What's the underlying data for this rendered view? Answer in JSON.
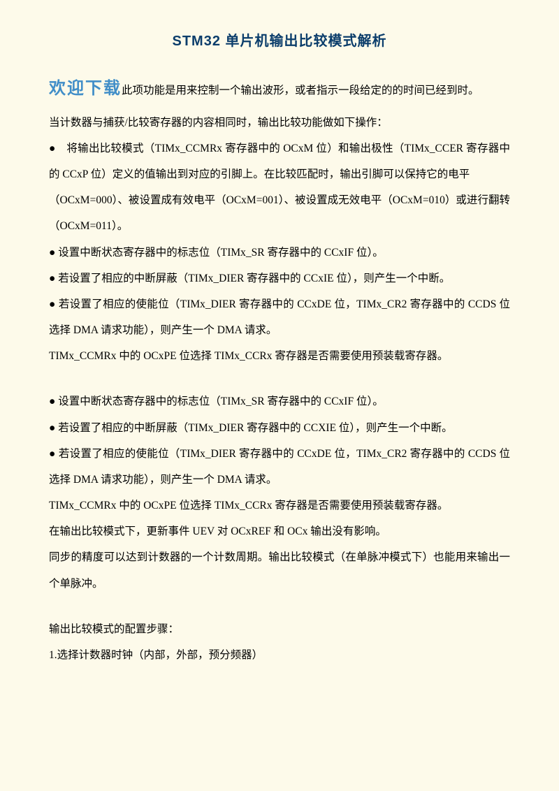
{
  "title": "STM32 单片机输出比较模式解析",
  "watermark": "欢迎下载",
  "p00": "此项功能是用来控制一个输出波形，或者指示一段给定的的时间已经到时。",
  "p01": "当计数器与捕获/比较寄存器的内容相同时，输出比较功能做如下操作：",
  "p02": "●　将输出比较模式（TIMx_CCMRx 寄存器中的 OCxM 位）和输出极性（TIMx_CCER 寄存器中的 CCxP 位）定义的值输出到对应的引脚上。在比较匹配时，输出引脚可以保持它的电平",
  "p03": "（OCxM=000）、被设置成有效电平（OCxM=001）、被设置成无效电平（OCxM=010）或进行翻转（OCxM=011）。",
  "p04": "● 设置中断状态寄存器中的标志位（TIMx_SR 寄存器中的 CCxIF 位）。",
  "p05": "● 若设置了相应的中断屏蔽（TIMx_DIER 寄存器中的 CCxIE 位），则产生一个中断。",
  "p06": "● 若设置了相应的使能位（TIMx_DIER 寄存器中的 CCxDE 位，TIMx_CR2 寄存器中的 CCDS 位选择 DMA 请求功能），则产生一个 DMA 请求。",
  "p07": "TIMx_CCMRx 中的 OCxPE 位选择 TIMx_CCRx 寄存器是否需要使用预装载寄存器。",
  "p08": "● 设置中断状态寄存器中的标志位（TIMx_SR 寄存器中的 CCxIF 位）。",
  "p09": "● 若设置了相应的中断屏蔽（TIMx_DIER 寄存器中的 CCXIE 位），则产生一个中断。",
  "p10": "● 若设置了相应的使能位（TIMx_DIER 寄存器中的 CCxDE 位，TIMx_CR2 寄存器中的 CCDS 位选择 DMA 请求功能），则产生一个 DMA 请求。",
  "p11": "TIMx_CCMRx 中的 OCxPE 位选择 TIMx_CCRx 寄存器是否需要使用预装载寄存器。",
  "p12": "在输出比较模式下，更新事件 UEV 对 OCxREF 和 OCx 输出没有影响。",
  "p13": "同步的精度可以达到计数器的一个计数周期。输出比较模式（在单脉冲模式下）也能用来输出一个单脉冲。",
  "p14": "输出比较模式的配置步骤：",
  "p15": "1.选择计数器时钟（内部，外部，预分频器）"
}
